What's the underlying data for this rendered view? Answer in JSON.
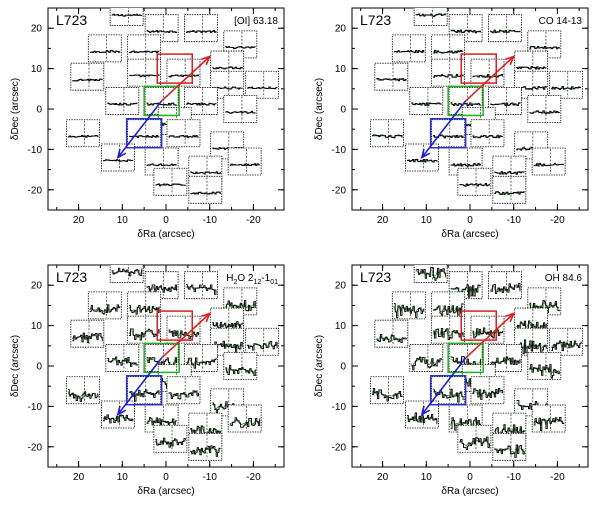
{
  "figure": {
    "common": {
      "region": "L723",
      "xlabel": "δRa (arcsec)",
      "ylabel": "δDec (arcsec)",
      "xticks": [
        20,
        10,
        0,
        -10,
        -20
      ],
      "yticks": [
        20,
        10,
        0,
        -10,
        -20
      ],
      "xlim": [
        27,
        -27
      ],
      "ylim": [
        -25,
        25
      ]
    },
    "panels": [
      {
        "line_main": "[OI] 63.18",
        "line_sub": "",
        "line_after": "",
        "line_sup": "",
        "line_end": ""
      },
      {
        "line_main": "CO 14-13",
        "line_sub": "",
        "line_after": "",
        "line_sup": "",
        "line_end": ""
      },
      {
        "line_main": "H",
        "line_sub": "2",
        "line_after": "O 2",
        "line_sup": "12",
        "line_end": "-1",
        "line_sub2": "01"
      },
      {
        "line_main": "OH 84.6",
        "line_sub": "",
        "line_after": "",
        "line_sup": "",
        "line_end": ""
      }
    ]
  },
  "chart_data": [
    {
      "type": "scatter",
      "title": "[OI] 63.18",
      "region": "L723",
      "xlabel": "δRa (arcsec)",
      "ylabel": "δDec (arcsec)",
      "xlim": [
        27,
        -27
      ],
      "ylim": [
        -25,
        25
      ],
      "noise_level": 0.15,
      "pixel_offsets": [
        [
          9,
          24
        ],
        [
          1,
          20
        ],
        [
          -8,
          20
        ],
        [
          -17,
          16
        ],
        [
          -14,
          11
        ],
        [
          5,
          15
        ],
        [
          14,
          15
        ],
        [
          18,
          8
        ],
        [
          5,
          9
        ],
        [
          -4,
          9
        ],
        [
          -14,
          6
        ],
        [
          -22,
          6
        ],
        [
          10,
          2
        ],
        [
          1,
          2
        ],
        [
          -8,
          2
        ],
        [
          -17,
          0
        ],
        [
          -2,
          -3
        ],
        [
          19,
          -6
        ],
        [
          5,
          -6
        ],
        [
          -4,
          -6
        ],
        [
          -14,
          -9
        ],
        [
          11,
          -12
        ],
        [
          1,
          -13
        ],
        [
          -9,
          -15
        ],
        [
          -18,
          -13
        ],
        [
          -1,
          -18
        ],
        [
          -9,
          -20
        ]
      ],
      "highlighted_boxes": [
        {
          "center": [
            -2,
            10
          ],
          "color": "#d62020"
        },
        {
          "center": [
            1,
            2
          ],
          "color": "#22b122"
        },
        {
          "center": [
            5,
            -6
          ],
          "color": "#2b36c8"
        }
      ],
      "outflow_arrows": [
        {
          "from": [
            1,
            2
          ],
          "to": [
            -10,
            13
          ],
          "color": "#d62020"
        },
        {
          "from": [
            1,
            2
          ],
          "to": [
            11,
            -12
          ],
          "color": "#2020cc"
        }
      ]
    },
    {
      "type": "scatter",
      "title": "CO 14-13",
      "region": "L723",
      "xlabel": "δRa (arcsec)",
      "ylabel": "δDec (arcsec)",
      "xlim": [
        27,
        -27
      ],
      "ylim": [
        -25,
        25
      ],
      "noise_level": 0.2,
      "pixel_offsets": [
        [
          9,
          24
        ],
        [
          1,
          20
        ],
        [
          -8,
          20
        ],
        [
          -17,
          16
        ],
        [
          -14,
          11
        ],
        [
          5,
          15
        ],
        [
          14,
          15
        ],
        [
          18,
          8
        ],
        [
          5,
          9
        ],
        [
          -4,
          9
        ],
        [
          -14,
          6
        ],
        [
          -22,
          6
        ],
        [
          10,
          2
        ],
        [
          1,
          2
        ],
        [
          -8,
          2
        ],
        [
          -17,
          0
        ],
        [
          -2,
          -3
        ],
        [
          19,
          -6
        ],
        [
          5,
          -6
        ],
        [
          -4,
          -6
        ],
        [
          -14,
          -9
        ],
        [
          11,
          -12
        ],
        [
          1,
          -13
        ],
        [
          -9,
          -15
        ],
        [
          -18,
          -13
        ],
        [
          -1,
          -18
        ],
        [
          -9,
          -20
        ]
      ],
      "highlighted_boxes": [
        {
          "center": [
            -2,
            10
          ],
          "color": "#d62020"
        },
        {
          "center": [
            1,
            2
          ],
          "color": "#22b122"
        },
        {
          "center": [
            5,
            -6
          ],
          "color": "#2b36c8"
        }
      ],
      "outflow_arrows": [
        {
          "from": [
            1,
            2
          ],
          "to": [
            -10,
            13
          ],
          "color": "#d62020"
        },
        {
          "from": [
            1,
            2
          ],
          "to": [
            11,
            -12
          ],
          "color": "#2020cc"
        }
      ]
    },
    {
      "type": "scatter",
      "title": "H2O 212-101",
      "region": "L723",
      "xlabel": "δRa (arcsec)",
      "ylabel": "δDec (arcsec)",
      "xlim": [
        27,
        -27
      ],
      "ylim": [
        -25,
        25
      ],
      "noise_level": 0.55,
      "pixel_offsets": [
        [
          9,
          24
        ],
        [
          1,
          20
        ],
        [
          -8,
          20
        ],
        [
          -17,
          16
        ],
        [
          -14,
          11
        ],
        [
          5,
          15
        ],
        [
          14,
          15
        ],
        [
          18,
          8
        ],
        [
          5,
          9
        ],
        [
          -4,
          9
        ],
        [
          -14,
          6
        ],
        [
          -22,
          6
        ],
        [
          10,
          2
        ],
        [
          1,
          2
        ],
        [
          -8,
          2
        ],
        [
          -17,
          0
        ],
        [
          -2,
          -3
        ],
        [
          19,
          -6
        ],
        [
          5,
          -6
        ],
        [
          -4,
          -6
        ],
        [
          -14,
          -9
        ],
        [
          11,
          -12
        ],
        [
          1,
          -13
        ],
        [
          -9,
          -15
        ],
        [
          -18,
          -13
        ],
        [
          -1,
          -18
        ],
        [
          -9,
          -20
        ]
      ],
      "highlighted_boxes": [
        {
          "center": [
            -2,
            10
          ],
          "color": "#d62020"
        },
        {
          "center": [
            1,
            2
          ],
          "color": "#22b122"
        },
        {
          "center": [
            5,
            -6
          ],
          "color": "#2b36c8"
        }
      ],
      "outflow_arrows": [
        {
          "from": [
            1,
            2
          ],
          "to": [
            -10,
            13
          ],
          "color": "#d62020"
        },
        {
          "from": [
            1,
            2
          ],
          "to": [
            11,
            -12
          ],
          "color": "#2020cc"
        }
      ]
    },
    {
      "type": "scatter",
      "title": "OH 84.6",
      "region": "L723",
      "xlabel": "δRa (arcsec)",
      "ylabel": "δDec (arcsec)",
      "xlim": [
        27,
        -27
      ],
      "ylim": [
        -25,
        25
      ],
      "noise_level": 0.7,
      "pixel_offsets": [
        [
          9,
          24
        ],
        [
          1,
          20
        ],
        [
          -8,
          20
        ],
        [
          -17,
          16
        ],
        [
          -14,
          11
        ],
        [
          5,
          15
        ],
        [
          14,
          15
        ],
        [
          18,
          8
        ],
        [
          5,
          9
        ],
        [
          -4,
          9
        ],
        [
          -14,
          6
        ],
        [
          -22,
          6
        ],
        [
          10,
          2
        ],
        [
          1,
          2
        ],
        [
          -8,
          2
        ],
        [
          -17,
          0
        ],
        [
          -2,
          -3
        ],
        [
          19,
          -6
        ],
        [
          5,
          -6
        ],
        [
          -4,
          -6
        ],
        [
          -14,
          -9
        ],
        [
          11,
          -12
        ],
        [
          1,
          -13
        ],
        [
          -9,
          -15
        ],
        [
          -18,
          -13
        ],
        [
          -1,
          -18
        ],
        [
          -9,
          -20
        ]
      ],
      "highlighted_boxes": [
        {
          "center": [
            -2,
            10
          ],
          "color": "#d62020"
        },
        {
          "center": [
            1,
            2
          ],
          "color": "#22b122"
        },
        {
          "center": [
            5,
            -6
          ],
          "color": "#2b36c8"
        }
      ],
      "outflow_arrows": [
        {
          "from": [
            1,
            2
          ],
          "to": [
            -10,
            13
          ],
          "color": "#d62020"
        },
        {
          "from": [
            1,
            2
          ],
          "to": [
            11,
            -12
          ],
          "color": "#2020cc"
        }
      ]
    }
  ]
}
